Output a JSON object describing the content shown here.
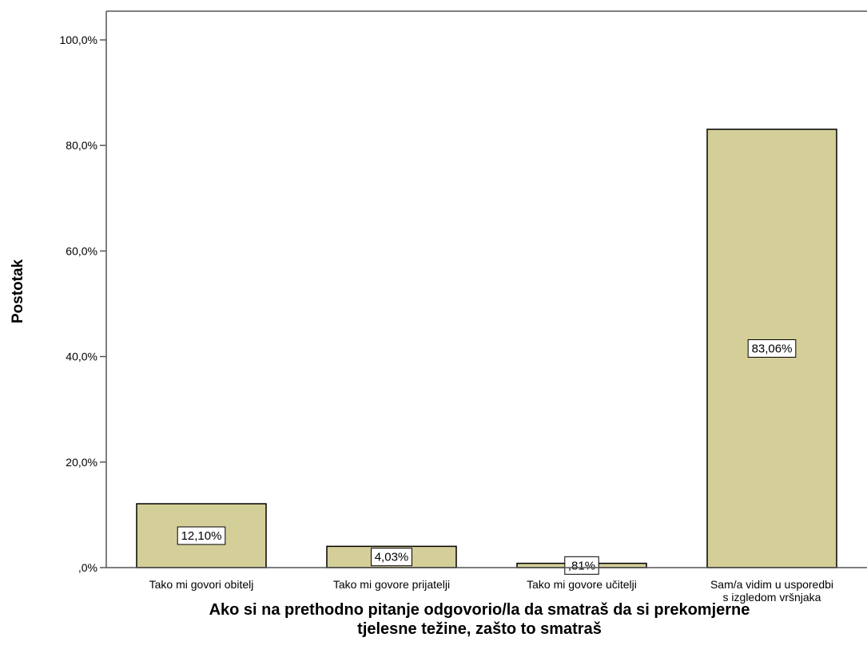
{
  "chart_data": {
    "type": "bar",
    "title": "",
    "categories": [
      "Tako mi govori obitelj",
      "Tako mi govore prijatelji",
      "Tako mi govore učitelji",
      "Sam/a vidim u usporedbi\ns izgledom vršnjaka"
    ],
    "values": [
      12.1,
      4.03,
      0.81,
      83.06
    ],
    "data_labels": [
      "12,10%",
      "4,03%",
      ",81%",
      "83,06%"
    ],
    "ylim": [
      0,
      100
    ],
    "yticks": [
      0,
      20,
      40,
      60,
      80,
      100
    ],
    "ytick_labels": [
      ",0%",
      "20,0%",
      "40,0%",
      "60,0%",
      "80,0%",
      "100,0%"
    ],
    "ylabel": "Postotak",
    "xlabel": "Ako si na prethodno pitanje odgovorio/la da smatraš da si prekomjerne\ntjelesne težine, zašto to smatraš",
    "grid": false,
    "legend": "none",
    "colors": {
      "bar_fill": "#d4cf98",
      "bar_stroke": "#000000",
      "axis": "#555555"
    }
  }
}
